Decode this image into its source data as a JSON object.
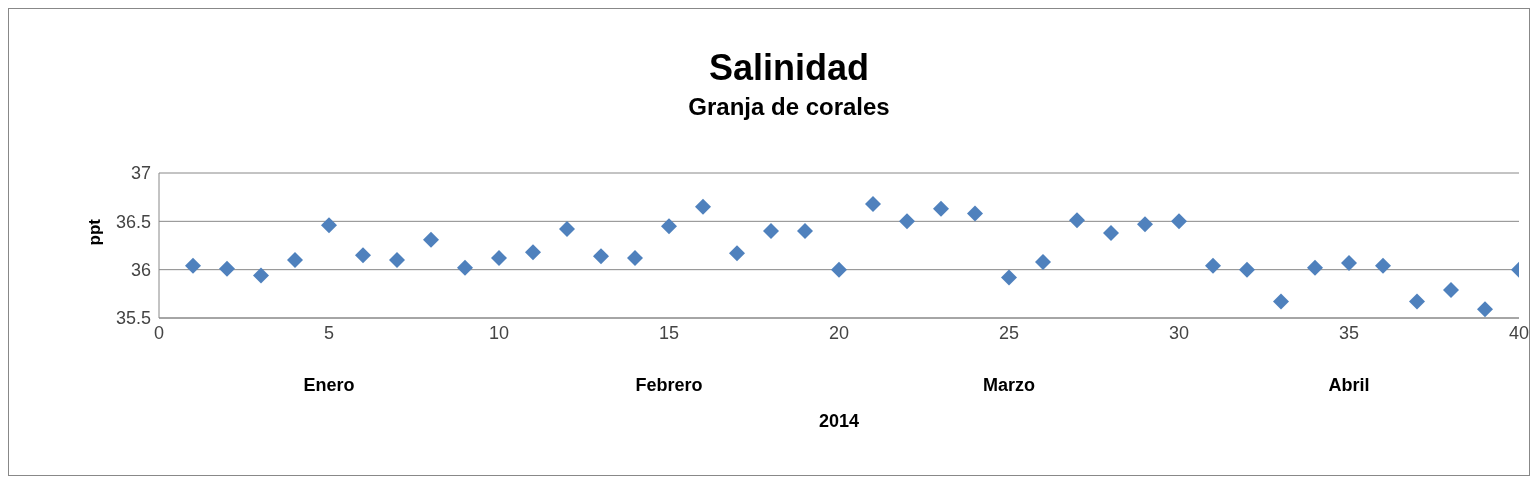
{
  "chart_data": {
    "type": "scatter",
    "title": "Salinidad",
    "subtitle": "Granja de corales",
    "xlabel": "2014",
    "ylabel": "ppt",
    "annotations": [
      "Enero",
      "Febrero",
      "Marzo",
      "Abril"
    ],
    "x": [
      1,
      2,
      3,
      4,
      5,
      6,
      7,
      8,
      9,
      10,
      11,
      12,
      13,
      14,
      15,
      16,
      17,
      18,
      19,
      20,
      21,
      22,
      23,
      24,
      25,
      26,
      27,
      28,
      29,
      30,
      31,
      32,
      33,
      34,
      35,
      36,
      37,
      38,
      39,
      40
    ],
    "series": [
      {
        "color": "#4f81bd",
        "values": [
          36.04,
          36.01,
          35.94,
          36.1,
          36.46,
          36.15,
          36.1,
          36.31,
          36.02,
          36.12,
          36.18,
          36.42,
          36.14,
          36.12,
          36.45,
          36.65,
          36.17,
          36.4,
          36.4,
          36.0,
          36.68,
          36.5,
          36.63,
          36.58,
          35.92,
          36.08,
          36.51,
          36.38,
          36.47,
          36.5,
          36.04,
          36.0,
          35.67,
          36.02,
          36.07,
          36.04,
          35.67,
          35.79,
          35.59,
          36.0
        ]
      }
    ],
    "xlim": [
      0,
      40
    ],
    "xticks": [
      0,
      5,
      10,
      15,
      20,
      25,
      30,
      35,
      40
    ],
    "ylim": [
      35.5,
      37
    ],
    "yticks": [
      35.5,
      36,
      36.5,
      37
    ],
    "grid": "y",
    "marker": "diamond",
    "legend": false
  }
}
